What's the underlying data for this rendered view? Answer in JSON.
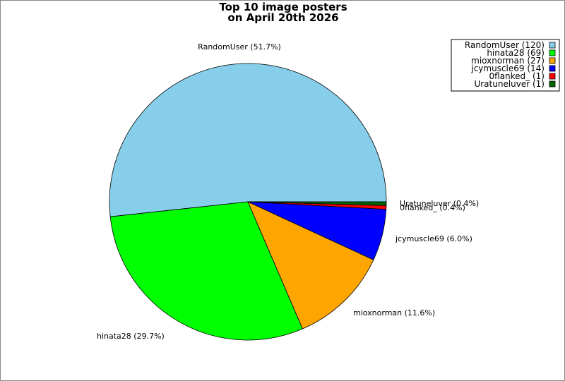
{
  "chart_data": {
    "type": "pie",
    "title": [
      "Top 10 image posters",
      "on April 20th 2026"
    ],
    "slices": [
      {
        "label": "RandomUser",
        "value": 120,
        "percent_label": "RandomUser (51.7%)",
        "legend_label": "RandomUser (120)",
        "color": "#87ceeb"
      },
      {
        "label": "hinata28",
        "value": 69,
        "percent_label": "hinata28 (29.7%)",
        "legend_label": "hinata28 (69)",
        "color": "#00ff00"
      },
      {
        "label": "mioxnorman",
        "value": 27,
        "percent_label": "mioxnorman (11.6%)",
        "legend_label": "mioxnorman (27)",
        "color": "#ffa500"
      },
      {
        "label": "jcymuscle69",
        "value": 14,
        "percent_label": "jcymuscle69 (6.0%)",
        "legend_label": "jcymuscle69 (14)",
        "color": "#0000ff"
      },
      {
        "label": "0flanked_",
        "value": 1,
        "percent_label": "0flanked_ (0.4%)",
        "legend_label": "0flanked_ (1)",
        "color": "#ff0000"
      },
      {
        "label": "Uratuneluver",
        "value": 1,
        "percent_label": "Uratuneluver (0.4%)",
        "legend_label": "Uratuneluver (1)",
        "color": "#006400"
      }
    ],
    "legend_position": "top-right"
  }
}
